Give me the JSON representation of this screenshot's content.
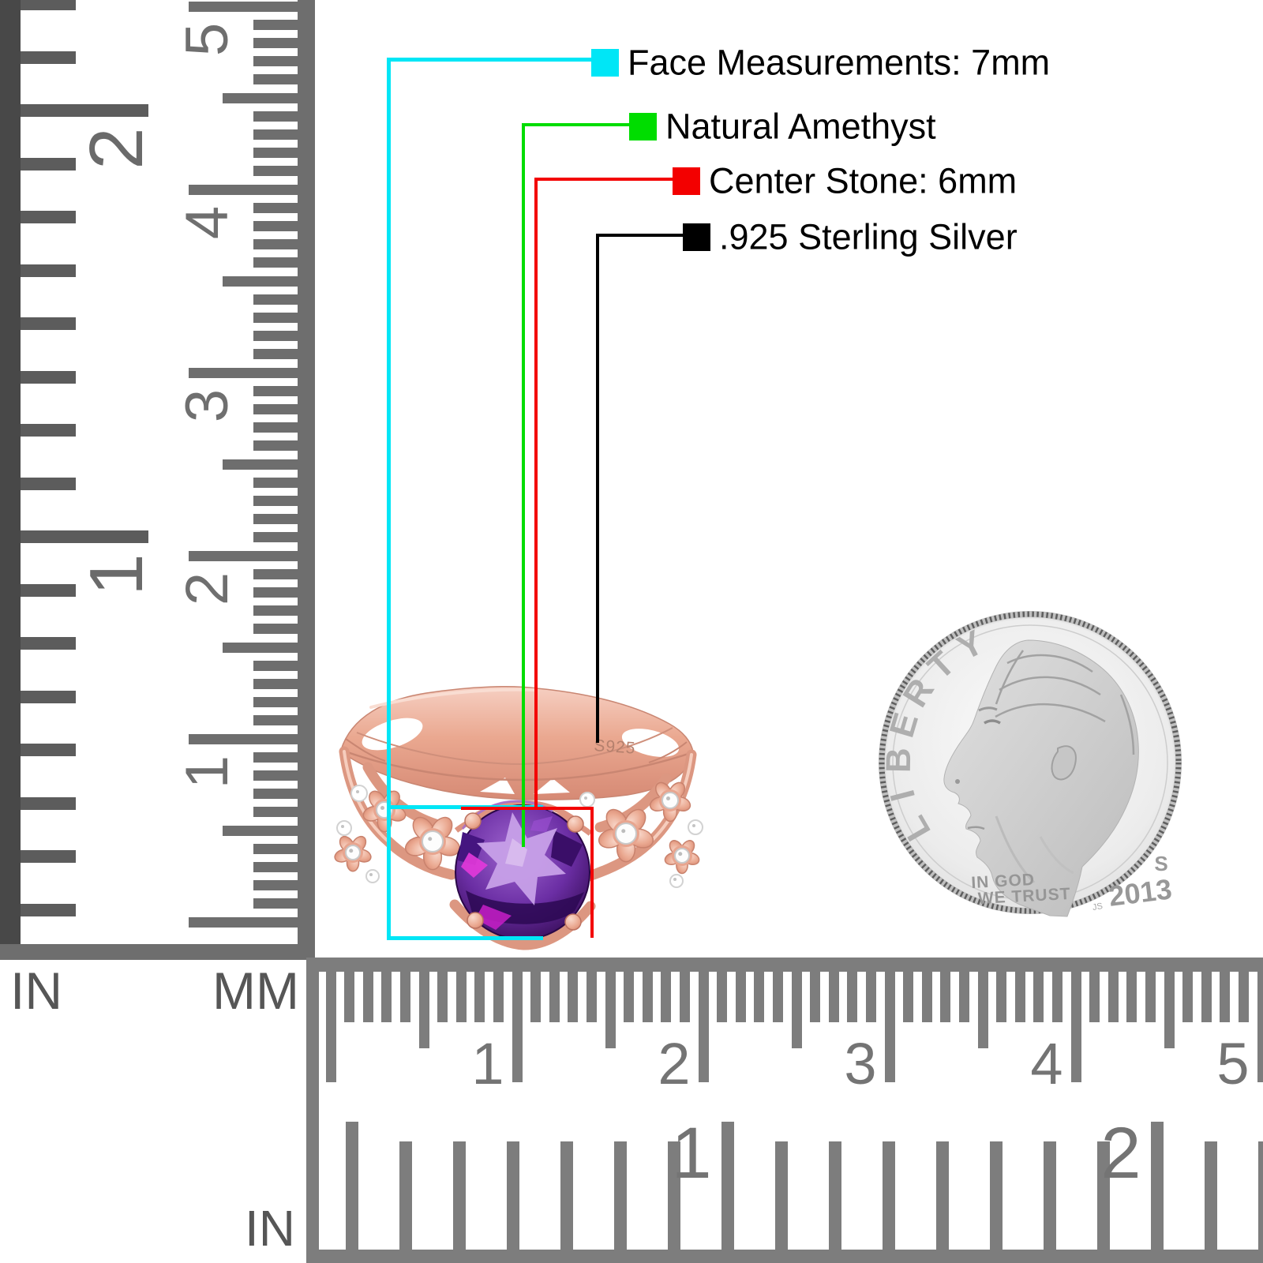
{
  "annotations": {
    "items": [
      {
        "label": "Face Measurements: 7mm",
        "color": "#00e6f6"
      },
      {
        "label": "Natural Amethyst",
        "color": "#00dd00"
      },
      {
        "label": "Center Stone: 6mm",
        "color": "#f30000"
      },
      {
        "label": ".925 Sterling Silver",
        "color": "#000000"
      }
    ]
  },
  "vertical_ruler": {
    "unit_left": "IN",
    "unit_right": "MM",
    "inch_numbers": [
      "2",
      "1"
    ],
    "cm_numbers": [
      "5",
      "4",
      "3",
      "2",
      "1"
    ]
  },
  "horizontal_ruler": {
    "unit": "IN",
    "cm_numbers": [
      "1",
      "2",
      "3",
      "4",
      "5"
    ],
    "inch_numbers": [
      "1",
      "2"
    ]
  },
  "ring": {
    "engraving": "S925",
    "metal_color": "#eaa28c",
    "stone_color": "#5a2193",
    "accent_stone_color": "#ffffff"
  },
  "coin": {
    "legend": "LIBERTY",
    "motto_top": "IN GOD",
    "motto_bottom": "WE TRUST",
    "year": "2013",
    "mint_mark": "S",
    "designer_initials": "JS"
  }
}
